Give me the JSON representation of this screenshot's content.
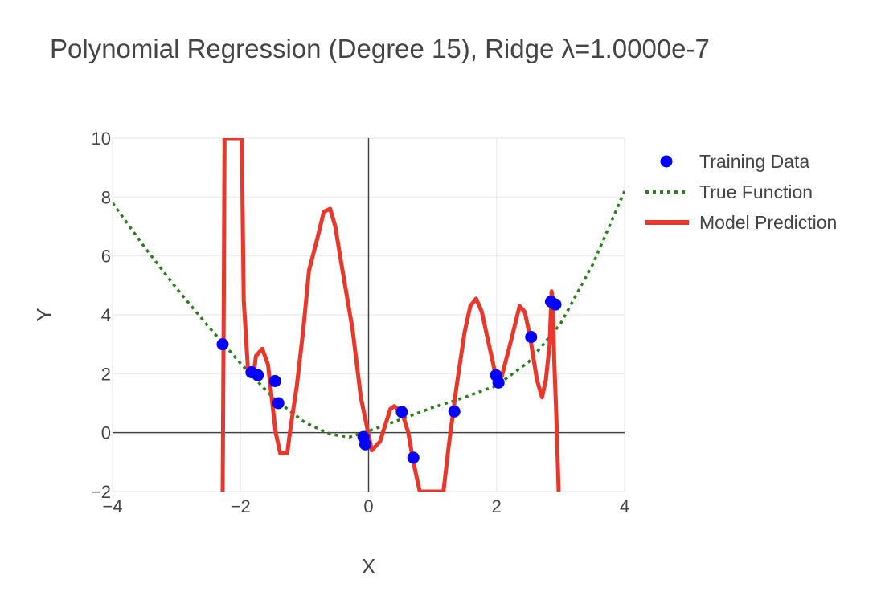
{
  "chart_data": {
    "type": "scatter",
    "title": "Polynomial Regression (Degree 15), Ridge λ=1.0000e-7",
    "xlabel": "X",
    "ylabel": "Y",
    "xlim": [
      -4,
      4
    ],
    "ylim": [
      -2,
      10
    ],
    "xticks": [
      -4,
      -2,
      0,
      2,
      4
    ],
    "yticks": [
      -2,
      0,
      2,
      4,
      6,
      8,
      10
    ],
    "xtick_labels": [
      "−4",
      "−2",
      "0",
      "2",
      "4"
    ],
    "ytick_labels": [
      "−2",
      "0",
      "2",
      "4",
      "6",
      "8",
      "10"
    ],
    "grid": true,
    "legend_position": "top-right (outside plot)",
    "series": [
      {
        "name": "Training Data",
        "kind": "markers",
        "color": "#0000ff",
        "x": [
          -2.28,
          -1.83,
          -1.73,
          -1.46,
          -1.41,
          -0.08,
          -0.05,
          0.52,
          0.7,
          1.34,
          1.99,
          2.03,
          2.54,
          2.85,
          2.92
        ],
        "y": [
          3.0,
          2.05,
          1.95,
          1.75,
          1.0,
          -0.15,
          -0.4,
          0.7,
          -0.85,
          0.72,
          1.95,
          1.7,
          3.25,
          4.45,
          4.35
        ]
      },
      {
        "name": "True Function",
        "kind": "dotted-line",
        "color": "#2e7d20",
        "x": [
          -4.0,
          -3.5,
          -3.0,
          -2.5,
          -2.0,
          -1.5,
          -1.0,
          -0.6,
          -0.3,
          0.0,
          0.5,
          1.0,
          1.5,
          2.0,
          2.5,
          3.0,
          3.5,
          4.0
        ],
        "y": [
          7.8,
          6.3,
          4.9,
          3.6,
          2.35,
          1.2,
          0.35,
          -0.05,
          -0.15,
          0.05,
          0.45,
          0.85,
          1.2,
          1.6,
          2.4,
          3.7,
          5.7,
          8.2
        ]
      },
      {
        "name": "Model Prediction",
        "kind": "line",
        "color": "#e8372b",
        "x": [
          -2.28,
          -2.26,
          -2.25,
          -2.22,
          -2.2,
          -1.98,
          -1.95,
          -1.88,
          -1.8,
          -1.76,
          -1.66,
          -1.57,
          -1.52,
          -1.45,
          -1.38,
          -1.27,
          -1.23,
          -1.12,
          -1.02,
          -0.93,
          -0.8,
          -0.7,
          -0.6,
          -0.52,
          -0.43,
          -0.25,
          -0.12,
          0.05,
          0.18,
          0.34,
          0.4,
          0.52,
          0.62,
          0.7,
          0.8,
          1.17,
          1.25,
          1.37,
          1.5,
          1.59,
          1.68,
          1.77,
          1.88,
          1.98,
          2.08,
          2.2,
          2.36,
          2.44,
          2.52,
          2.63,
          2.71,
          2.77,
          2.83,
          2.86,
          2.88,
          2.9,
          2.93,
          2.97,
          2.99
        ],
        "y": [
          -2.0,
          5.0,
          10.0,
          12.0,
          10.0,
          10.0,
          4.5,
          2.0,
          1.9,
          2.6,
          2.85,
          2.3,
          1.3,
          0.0,
          -0.7,
          -0.7,
          0.0,
          1.6,
          3.5,
          5.5,
          6.6,
          7.5,
          7.6,
          7.0,
          5.8,
          3.5,
          1.2,
          -0.6,
          -0.3,
          0.8,
          0.9,
          0.7,
          0.0,
          -1.0,
          -2.0,
          -2.0,
          -0.5,
          1.5,
          3.4,
          4.3,
          4.55,
          4.1,
          3.0,
          2.0,
          1.9,
          2.9,
          4.3,
          4.1,
          3.3,
          1.8,
          1.2,
          1.8,
          3.0,
          4.8,
          4.4,
          2.5,
          0.8,
          -2.0,
          -2.0
        ]
      }
    ]
  }
}
